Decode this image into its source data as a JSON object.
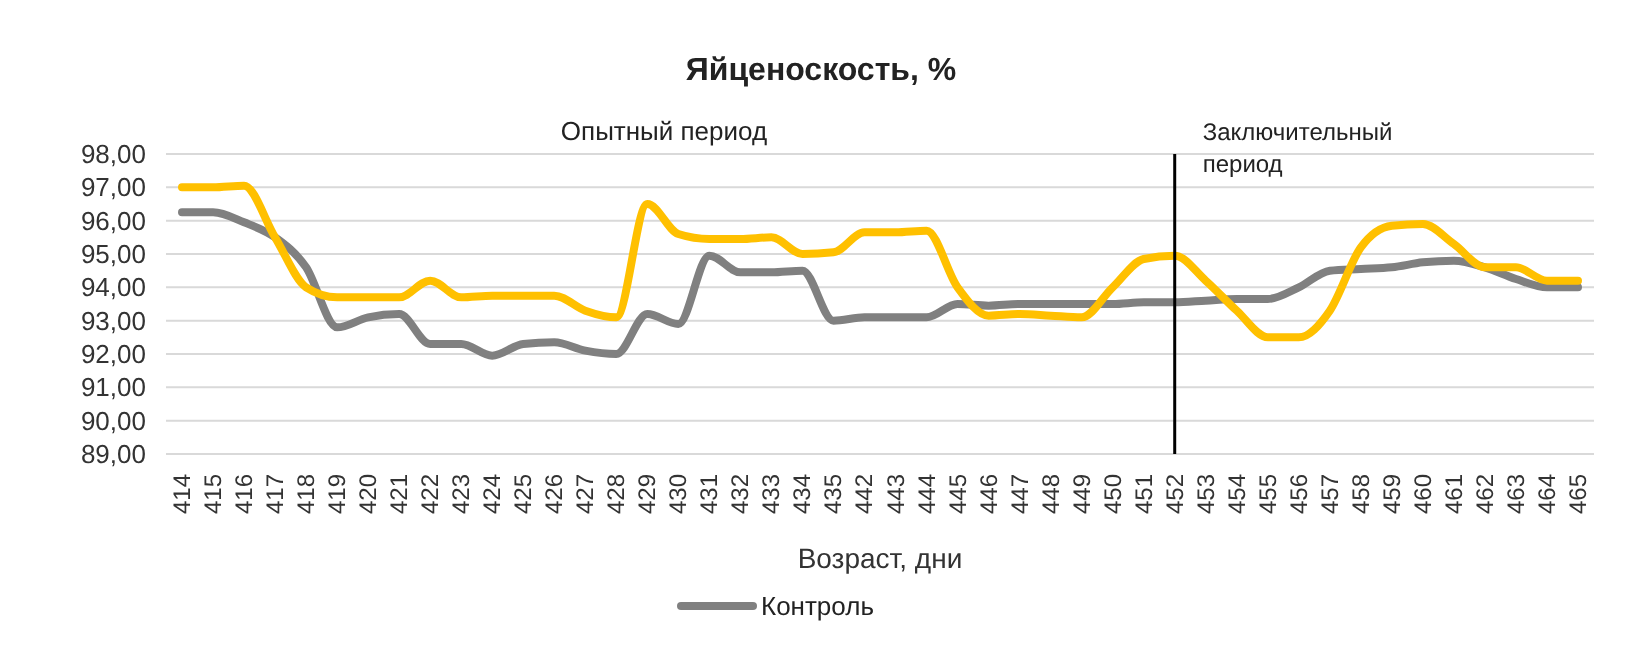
{
  "chart_data": {
    "type": "line",
    "title": "Яйценоскость, %",
    "xlabel": "Возраст, дни",
    "categories": [
      "414",
      "415",
      "416",
      "417",
      "418",
      "419",
      "420",
      "421",
      "422",
      "423",
      "424",
      "425",
      "426",
      "427",
      "428",
      "429",
      "430",
      "431",
      "432",
      "433",
      "434",
      "435",
      "442",
      "443",
      "444",
      "445",
      "446",
      "447",
      "448",
      "449",
      "450",
      "451",
      "452",
      "453",
      "454",
      "455",
      "456",
      "457",
      "458",
      "459",
      "460",
      "461",
      "462",
      "463",
      "464",
      "465"
    ],
    "series": [
      {
        "name": "Контроль",
        "color": "#808080",
        "values": [
          96.25,
          96.25,
          95.95,
          95.5,
          94.6,
          92.8,
          93.1,
          93.2,
          92.3,
          92.3,
          91.95,
          92.3,
          92.35,
          92.1,
          92.0,
          93.2,
          92.9,
          94.95,
          94.45,
          94.45,
          94.5,
          93.0,
          93.1,
          93.1,
          93.1,
          93.5,
          93.45,
          93.5,
          93.5,
          93.5,
          93.5,
          93.55,
          93.55,
          93.6,
          93.65,
          93.65,
          94.0,
          94.5,
          94.55,
          94.6,
          94.75,
          94.8,
          94.6,
          94.25,
          94.0,
          94.0
        ]
      },
      {
        "color": "#ffc000",
        "values": [
          97.0,
          97.0,
          97.05,
          95.5,
          94.0,
          93.7,
          93.7,
          93.7,
          94.2,
          93.7,
          93.75,
          93.75,
          93.75,
          93.3,
          93.1,
          96.5,
          95.6,
          95.45,
          95.45,
          95.5,
          95.0,
          95.05,
          95.65,
          95.65,
          95.7,
          94.0,
          93.15,
          93.2,
          93.15,
          93.1,
          94.0,
          94.85,
          94.95,
          94.2,
          93.3,
          92.5,
          92.5,
          93.3,
          95.2,
          95.85,
          95.9,
          95.3,
          94.6,
          94.6,
          94.2,
          94.2
        ]
      }
    ],
    "ylim": [
      89,
      98
    ],
    "yticks": [
      {
        "value": 89,
        "label": "89,00"
      },
      {
        "value": 90,
        "label": "90,00"
      },
      {
        "value": 91,
        "label": "91,00"
      },
      {
        "value": 92,
        "label": "92,00"
      },
      {
        "value": 93,
        "label": "93,00"
      },
      {
        "value": 94,
        "label": "94,00"
      },
      {
        "value": 95,
        "label": "95,00"
      },
      {
        "value": 96,
        "label": "96,00"
      },
      {
        "value": 97,
        "label": "97,00"
      },
      {
        "value": 98,
        "label": "98,00"
      }
    ],
    "grid": "y",
    "legend": "bottom",
    "marker": "none",
    "line_style": "solid",
    "ref_lines": [
      {
        "axis": "x",
        "value": "452",
        "label": "Заключительный период",
        "color": "#000000"
      }
    ],
    "annotations": [
      "Опытный период"
    ]
  }
}
